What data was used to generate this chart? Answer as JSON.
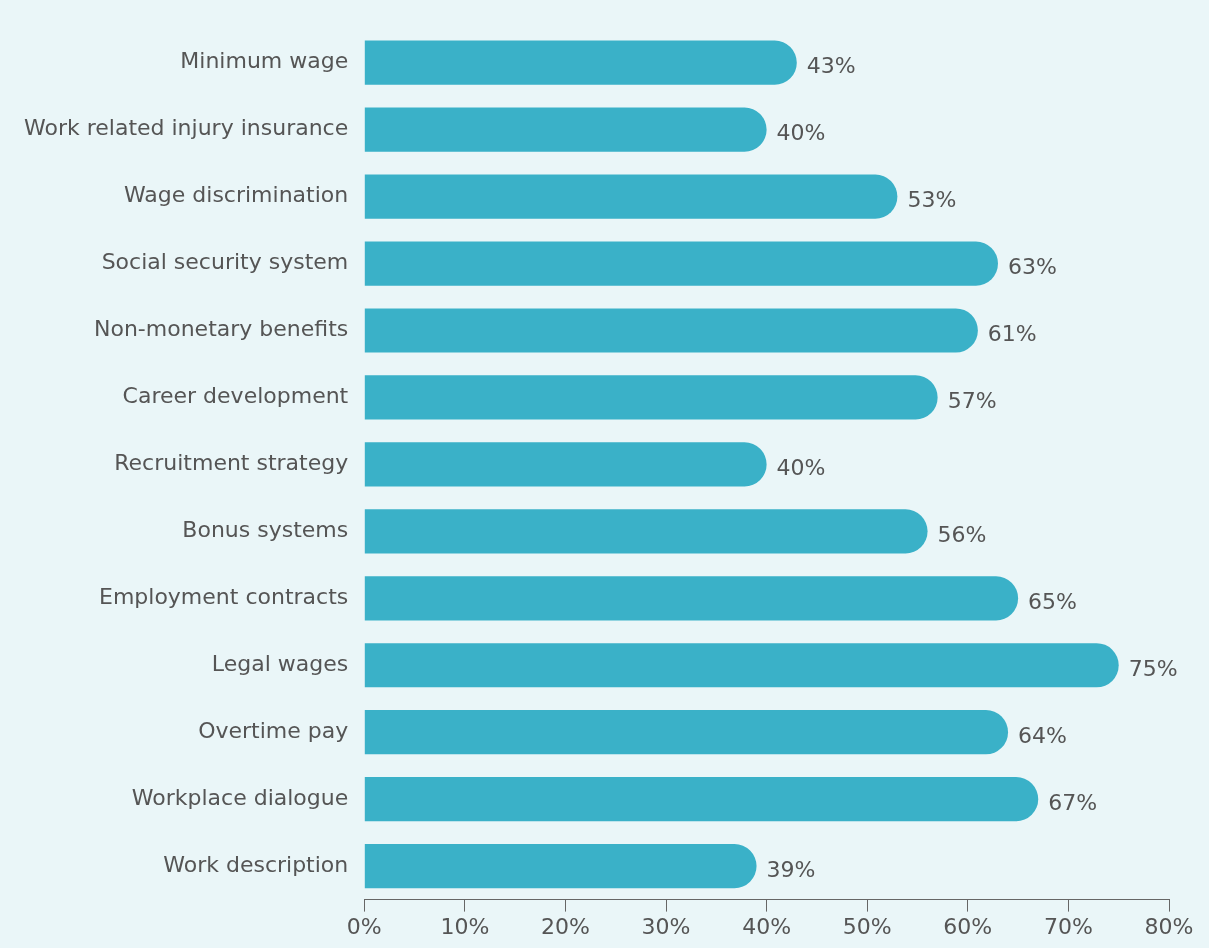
{
  "chart_data": {
    "type": "bar",
    "orientation": "horizontal",
    "categories": [
      "Minimum wage",
      "Work related injury insurance",
      "Wage discrimination",
      "Social security system",
      "Non-monetary benefits",
      "Career development",
      "Recruitment strategy",
      "Bonus systems",
      "Employment contracts",
      "Legal wages",
      "Overtime pay",
      "Workplace dialogue",
      "Work description"
    ],
    "values": [
      43,
      40,
      53,
      63,
      61,
      57,
      40,
      56,
      65,
      75,
      64,
      67,
      39
    ],
    "value_labels": [
      "43%",
      "40%",
      "53%",
      "63%",
      "61%",
      "57%",
      "40%",
      "56%",
      "65%",
      "75%",
      "64%",
      "67%",
      "39%"
    ],
    "color": "#3ab1c8",
    "xlim": [
      0,
      80
    ],
    "xticks": [
      {
        "value": 0,
        "label": "0%"
      },
      {
        "value": 10,
        "label": "10%"
      },
      {
        "value": 20,
        "label": "20%"
      },
      {
        "value": 30,
        "label": "30%"
      },
      {
        "value": 40,
        "label": "40%"
      },
      {
        "value": 50,
        "label": "50%"
      },
      {
        "value": 60,
        "label": "60%"
      },
      {
        "value": 70,
        "label": "70%"
      },
      {
        "value": 80,
        "label": "80%"
      }
    ],
    "grid": false,
    "legend": false
  }
}
